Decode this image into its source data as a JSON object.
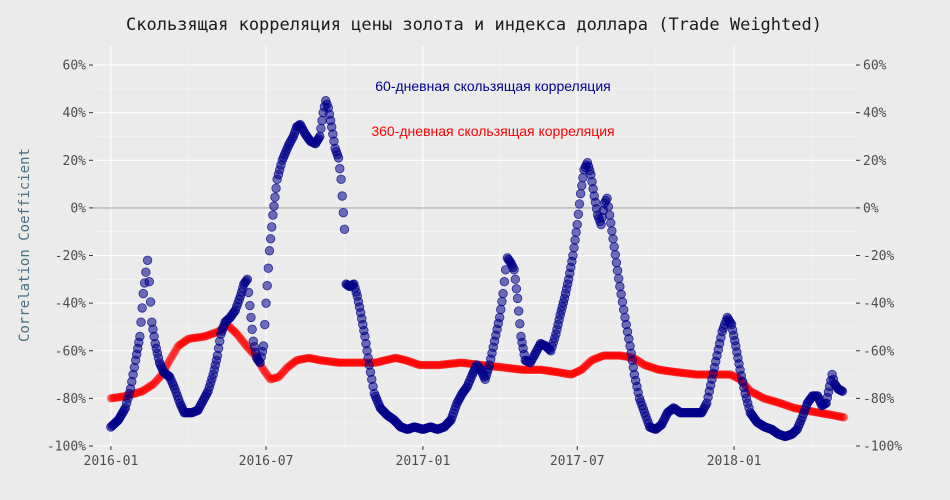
{
  "chart_data": {
    "type": "scatter",
    "title": "Скользящая корреляция цены золота и индекса доллара (Trade Weighted)",
    "ylabel": "Correlation Coefficient",
    "xlabel": "",
    "ylim": [
      -100,
      68
    ],
    "xlim": [
      "2015-12-11",
      "2018-05-24"
    ],
    "grid": true,
    "legend": "none",
    "y_ticks": [
      60,
      40,
      20,
      0,
      -20,
      -40,
      -60,
      -80,
      -100
    ],
    "y_tick_labels": [
      "60%",
      "40%",
      "20%",
      "0%",
      "-20%",
      "-40%",
      "-60%",
      "-80%",
      "-100%"
    ],
    "x_ticks": [
      "2016-01-01",
      "2016-07-01",
      "2017-01-01",
      "2017-07-01",
      "2018-01-01"
    ],
    "x_tick_labels": [
      "2016-01",
      "2016-07",
      "2017-01",
      "2017-07",
      "2018-01"
    ],
    "zero_line": 0,
    "annotations": [
      {
        "text": "60-дневная скользящая корреляция",
        "color": "#00008b"
      },
      {
        "text": "360-дневная скользящая корреляция",
        "color": "#ff0000"
      }
    ],
    "series": [
      {
        "name": "60-дневная скользящая корреляция",
        "color": "#00008b",
        "points": [
          [
            "2016-01-01",
            -92
          ],
          [
            "2016-01-10",
            -89
          ],
          [
            "2016-01-18",
            -84
          ],
          [
            "2016-01-24",
            -76
          ],
          [
            "2016-01-30",
            -64
          ],
          [
            "2016-02-04",
            -54
          ],
          [
            "2016-02-08",
            -36
          ],
          [
            "2016-02-11",
            -27
          ],
          [
            "2016-02-13",
            -22
          ],
          [
            "2016-02-15",
            -31
          ],
          [
            "2016-02-18",
            -48
          ],
          [
            "2016-02-22",
            -57
          ],
          [
            "2016-02-27",
            -65
          ],
          [
            "2016-03-03",
            -69
          ],
          [
            "2016-03-10",
            -71
          ],
          [
            "2016-03-16",
            -76
          ],
          [
            "2016-03-22",
            -82
          ],
          [
            "2016-03-27",
            -86
          ],
          [
            "2016-04-05",
            -86
          ],
          [
            "2016-04-12",
            -85
          ],
          [
            "2016-04-18",
            -81
          ],
          [
            "2016-04-24",
            -77
          ],
          [
            "2016-04-30",
            -70
          ],
          [
            "2016-05-05",
            -62
          ],
          [
            "2016-05-09",
            -53
          ],
          [
            "2016-05-14",
            -48
          ],
          [
            "2016-05-20",
            -46
          ],
          [
            "2016-05-26",
            -43
          ],
          [
            "2016-06-01",
            -37
          ],
          [
            "2016-06-05",
            -32
          ],
          [
            "2016-06-09",
            -30
          ],
          [
            "2016-06-12",
            -41
          ],
          [
            "2016-06-16",
            -56
          ],
          [
            "2016-06-20",
            -63
          ],
          [
            "2016-06-24",
            -65
          ],
          [
            "2016-06-28",
            -58
          ],
          [
            "2016-07-01",
            -40
          ],
          [
            "2016-07-05",
            -18
          ],
          [
            "2016-07-09",
            -3
          ],
          [
            "2016-07-14",
            12
          ],
          [
            "2016-07-20",
            20
          ],
          [
            "2016-07-27",
            26
          ],
          [
            "2016-08-02",
            30
          ],
          [
            "2016-08-06",
            34
          ],
          [
            "2016-08-10",
            35
          ],
          [
            "2016-08-16",
            31
          ],
          [
            "2016-08-22",
            28
          ],
          [
            "2016-08-28",
            27
          ],
          [
            "2016-09-02",
            30
          ],
          [
            "2016-09-06",
            40
          ],
          [
            "2016-09-09",
            45
          ],
          [
            "2016-09-12",
            42
          ],
          [
            "2016-09-16",
            34
          ],
          [
            "2016-09-20",
            25
          ],
          [
            "2016-09-24",
            21
          ],
          [
            "2016-09-27",
            12
          ],
          [
            "2016-10-01",
            -9
          ],
          [
            "2016-10-03",
            -32
          ],
          [
            "2016-10-07",
            -33
          ],
          [
            "2016-10-12",
            -32
          ],
          [
            "2016-10-16",
            -37
          ],
          [
            "2016-10-20",
            -44
          ],
          [
            "2016-10-25",
            -54
          ],
          [
            "2016-10-30",
            -66
          ],
          [
            "2016-11-05",
            -78
          ],
          [
            "2016-11-12",
            -84
          ],
          [
            "2016-11-20",
            -87
          ],
          [
            "2016-11-28",
            -89
          ],
          [
            "2016-12-06",
            -92
          ],
          [
            "2016-12-14",
            -93
          ],
          [
            "2016-12-22",
            -92
          ],
          [
            "2017-01-01",
            -93
          ],
          [
            "2017-01-10",
            -92
          ],
          [
            "2017-01-18",
            -93
          ],
          [
            "2017-01-26",
            -92
          ],
          [
            "2017-02-03",
            -89
          ],
          [
            "2017-02-10",
            -82
          ],
          [
            "2017-02-16",
            -78
          ],
          [
            "2017-02-22",
            -75
          ],
          [
            "2017-02-28",
            -70
          ],
          [
            "2017-03-05",
            -66
          ],
          [
            "2017-03-10",
            -68
          ],
          [
            "2017-03-15",
            -72
          ],
          [
            "2017-03-20",
            -66
          ],
          [
            "2017-03-26",
            -56
          ],
          [
            "2017-04-01",
            -46
          ],
          [
            "2017-04-05",
            -36
          ],
          [
            "2017-04-08",
            -26
          ],
          [
            "2017-04-10",
            -21
          ],
          [
            "2017-04-14",
            -23
          ],
          [
            "2017-04-18",
            -26
          ],
          [
            "2017-04-22",
            -38
          ],
          [
            "2017-04-26",
            -54
          ],
          [
            "2017-05-01",
            -64
          ],
          [
            "2017-05-07",
            -65
          ],
          [
            "2017-05-13",
            -61
          ],
          [
            "2017-05-19",
            -57
          ],
          [
            "2017-05-25",
            -58
          ],
          [
            "2017-05-31",
            -60
          ],
          [
            "2017-06-06",
            -53
          ],
          [
            "2017-06-11",
            -45
          ],
          [
            "2017-06-16",
            -38
          ],
          [
            "2017-06-21",
            -30
          ],
          [
            "2017-06-26",
            -20
          ],
          [
            "2017-07-01",
            -7
          ],
          [
            "2017-07-05",
            6
          ],
          [
            "2017-07-09",
            16
          ],
          [
            "2017-07-13",
            19
          ],
          [
            "2017-07-17",
            14
          ],
          [
            "2017-07-21",
            5
          ],
          [
            "2017-07-25",
            -3
          ],
          [
            "2017-07-29",
            -7
          ],
          [
            "2017-08-02",
            2
          ],
          [
            "2017-08-05",
            4
          ],
          [
            "2017-08-08",
            -3
          ],
          [
            "2017-08-12",
            -13
          ],
          [
            "2017-08-16",
            -23
          ],
          [
            "2017-08-20",
            -33
          ],
          [
            "2017-08-26",
            -46
          ],
          [
            "2017-09-01",
            -58
          ],
          [
            "2017-09-06",
            -70
          ],
          [
            "2017-09-12",
            -80
          ],
          [
            "2017-09-18",
            -86
          ],
          [
            "2017-09-24",
            -92
          ],
          [
            "2017-10-01",
            -93
          ],
          [
            "2017-10-08",
            -91
          ],
          [
            "2017-10-15",
            -86
          ],
          [
            "2017-10-22",
            -84
          ],
          [
            "2017-10-30",
            -86
          ],
          [
            "2017-11-08",
            -86
          ],
          [
            "2017-11-16",
            -86
          ],
          [
            "2017-11-24",
            -86
          ],
          [
            "2017-11-30",
            -82
          ],
          [
            "2017-12-06",
            -72
          ],
          [
            "2017-12-12",
            -62
          ],
          [
            "2017-12-18",
            -52
          ],
          [
            "2017-12-24",
            -46
          ],
          [
            "2017-12-29",
            -49
          ],
          [
            "2018-01-03",
            -58
          ],
          [
            "2018-01-08",
            -68
          ],
          [
            "2018-01-14",
            -78
          ],
          [
            "2018-01-20",
            -86
          ],
          [
            "2018-01-28",
            -90
          ],
          [
            "2018-02-06",
            -92
          ],
          [
            "2018-02-14",
            -93
          ],
          [
            "2018-02-22",
            -95
          ],
          [
            "2018-03-02",
            -96
          ],
          [
            "2018-03-10",
            -95
          ],
          [
            "2018-03-16",
            -93
          ],
          [
            "2018-03-22",
            -88
          ],
          [
            "2018-03-28",
            -82
          ],
          [
            "2018-04-03",
            -79
          ],
          [
            "2018-04-09",
            -79
          ],
          [
            "2018-04-14",
            -83
          ],
          [
            "2018-04-19",
            -82
          ],
          [
            "2018-04-23",
            -75
          ],
          [
            "2018-04-26",
            -70
          ],
          [
            "2018-04-29",
            -74
          ],
          [
            "2018-05-03",
            -76
          ],
          [
            "2018-05-08",
            -77
          ]
        ]
      },
      {
        "name": "360-дневная скользящая корреляция",
        "color": "#ff0000",
        "points": [
          [
            "2016-01-01",
            -80
          ],
          [
            "2016-01-20",
            -79
          ],
          [
            "2016-02-07",
            -77
          ],
          [
            "2016-02-20",
            -74
          ],
          [
            "2016-03-01",
            -70
          ],
          [
            "2016-03-10",
            -64
          ],
          [
            "2016-03-20",
            -58
          ],
          [
            "2016-04-01",
            -55
          ],
          [
            "2016-04-20",
            -54
          ],
          [
            "2016-05-06",
            -52
          ],
          [
            "2016-05-16",
            -49
          ],
          [
            "2016-05-28",
            -53
          ],
          [
            "2016-06-08",
            -58
          ],
          [
            "2016-06-18",
            -62
          ],
          [
            "2016-06-28",
            -68
          ],
          [
            "2016-07-06",
            -72
          ],
          [
            "2016-07-16",
            -71
          ],
          [
            "2016-07-26",
            -67
          ],
          [
            "2016-08-06",
            -64
          ],
          [
            "2016-08-20",
            -63
          ],
          [
            "2016-09-03",
            -64
          ],
          [
            "2016-09-24",
            -65
          ],
          [
            "2016-10-20",
            -65
          ],
          [
            "2016-11-07",
            -65
          ],
          [
            "2016-11-18",
            -64
          ],
          [
            "2016-11-30",
            -63
          ],
          [
            "2016-12-12",
            -64
          ],
          [
            "2016-12-28",
            -66
          ],
          [
            "2017-01-20",
            -66
          ],
          [
            "2017-02-15",
            -65
          ],
          [
            "2017-03-10",
            -66
          ],
          [
            "2017-04-05",
            -67
          ],
          [
            "2017-04-28",
            -68
          ],
          [
            "2017-05-20",
            -68
          ],
          [
            "2017-06-08",
            -69
          ],
          [
            "2017-06-24",
            -70
          ],
          [
            "2017-07-06",
            -68
          ],
          [
            "2017-07-18",
            -64
          ],
          [
            "2017-08-01",
            -62
          ],
          [
            "2017-08-20",
            -62
          ],
          [
            "2017-09-05",
            -63
          ],
          [
            "2017-09-18",
            -66
          ],
          [
            "2017-10-05",
            -68
          ],
          [
            "2017-10-25",
            -69
          ],
          [
            "2017-11-18",
            -70
          ],
          [
            "2017-12-05",
            -70
          ],
          [
            "2017-12-28",
            -70
          ],
          [
            "2018-01-08",
            -72
          ],
          [
            "2018-01-20",
            -77
          ],
          [
            "2018-02-05",
            -80
          ],
          [
            "2018-02-24",
            -82
          ],
          [
            "2018-03-12",
            -84
          ],
          [
            "2018-03-26",
            -85
          ],
          [
            "2018-04-10",
            -86
          ],
          [
            "2018-04-26",
            -87
          ],
          [
            "2018-05-10",
            -88
          ]
        ]
      }
    ]
  }
}
